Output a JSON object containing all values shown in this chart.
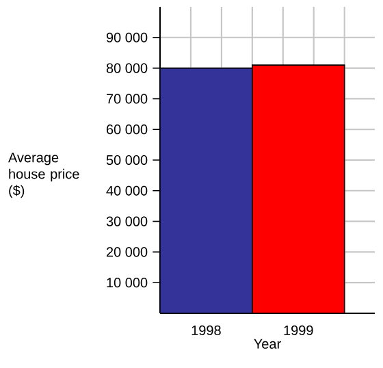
{
  "chart_data": {
    "type": "bar",
    "xlabel": "Year",
    "ylabel": "Average house price ($)",
    "categories": [
      "1998",
      "1999"
    ],
    "values": [
      80000,
      81000
    ],
    "colors": [
      "#333399",
      "#ff0000"
    ],
    "ylim": [
      0,
      100000
    ],
    "yticks": [
      {
        "value": 10000,
        "label": "10 000"
      },
      {
        "value": 20000,
        "label": "20 000"
      },
      {
        "value": 30000,
        "label": "30 000"
      },
      {
        "value": 40000,
        "label": "40 000"
      },
      {
        "value": 50000,
        "label": "50 000"
      },
      {
        "value": 60000,
        "label": "60 000"
      },
      {
        "value": 70000,
        "label": "70 000"
      },
      {
        "value": 80000,
        "label": "80 000"
      },
      {
        "value": 90000,
        "label": "90 000"
      }
    ],
    "grid": true
  }
}
